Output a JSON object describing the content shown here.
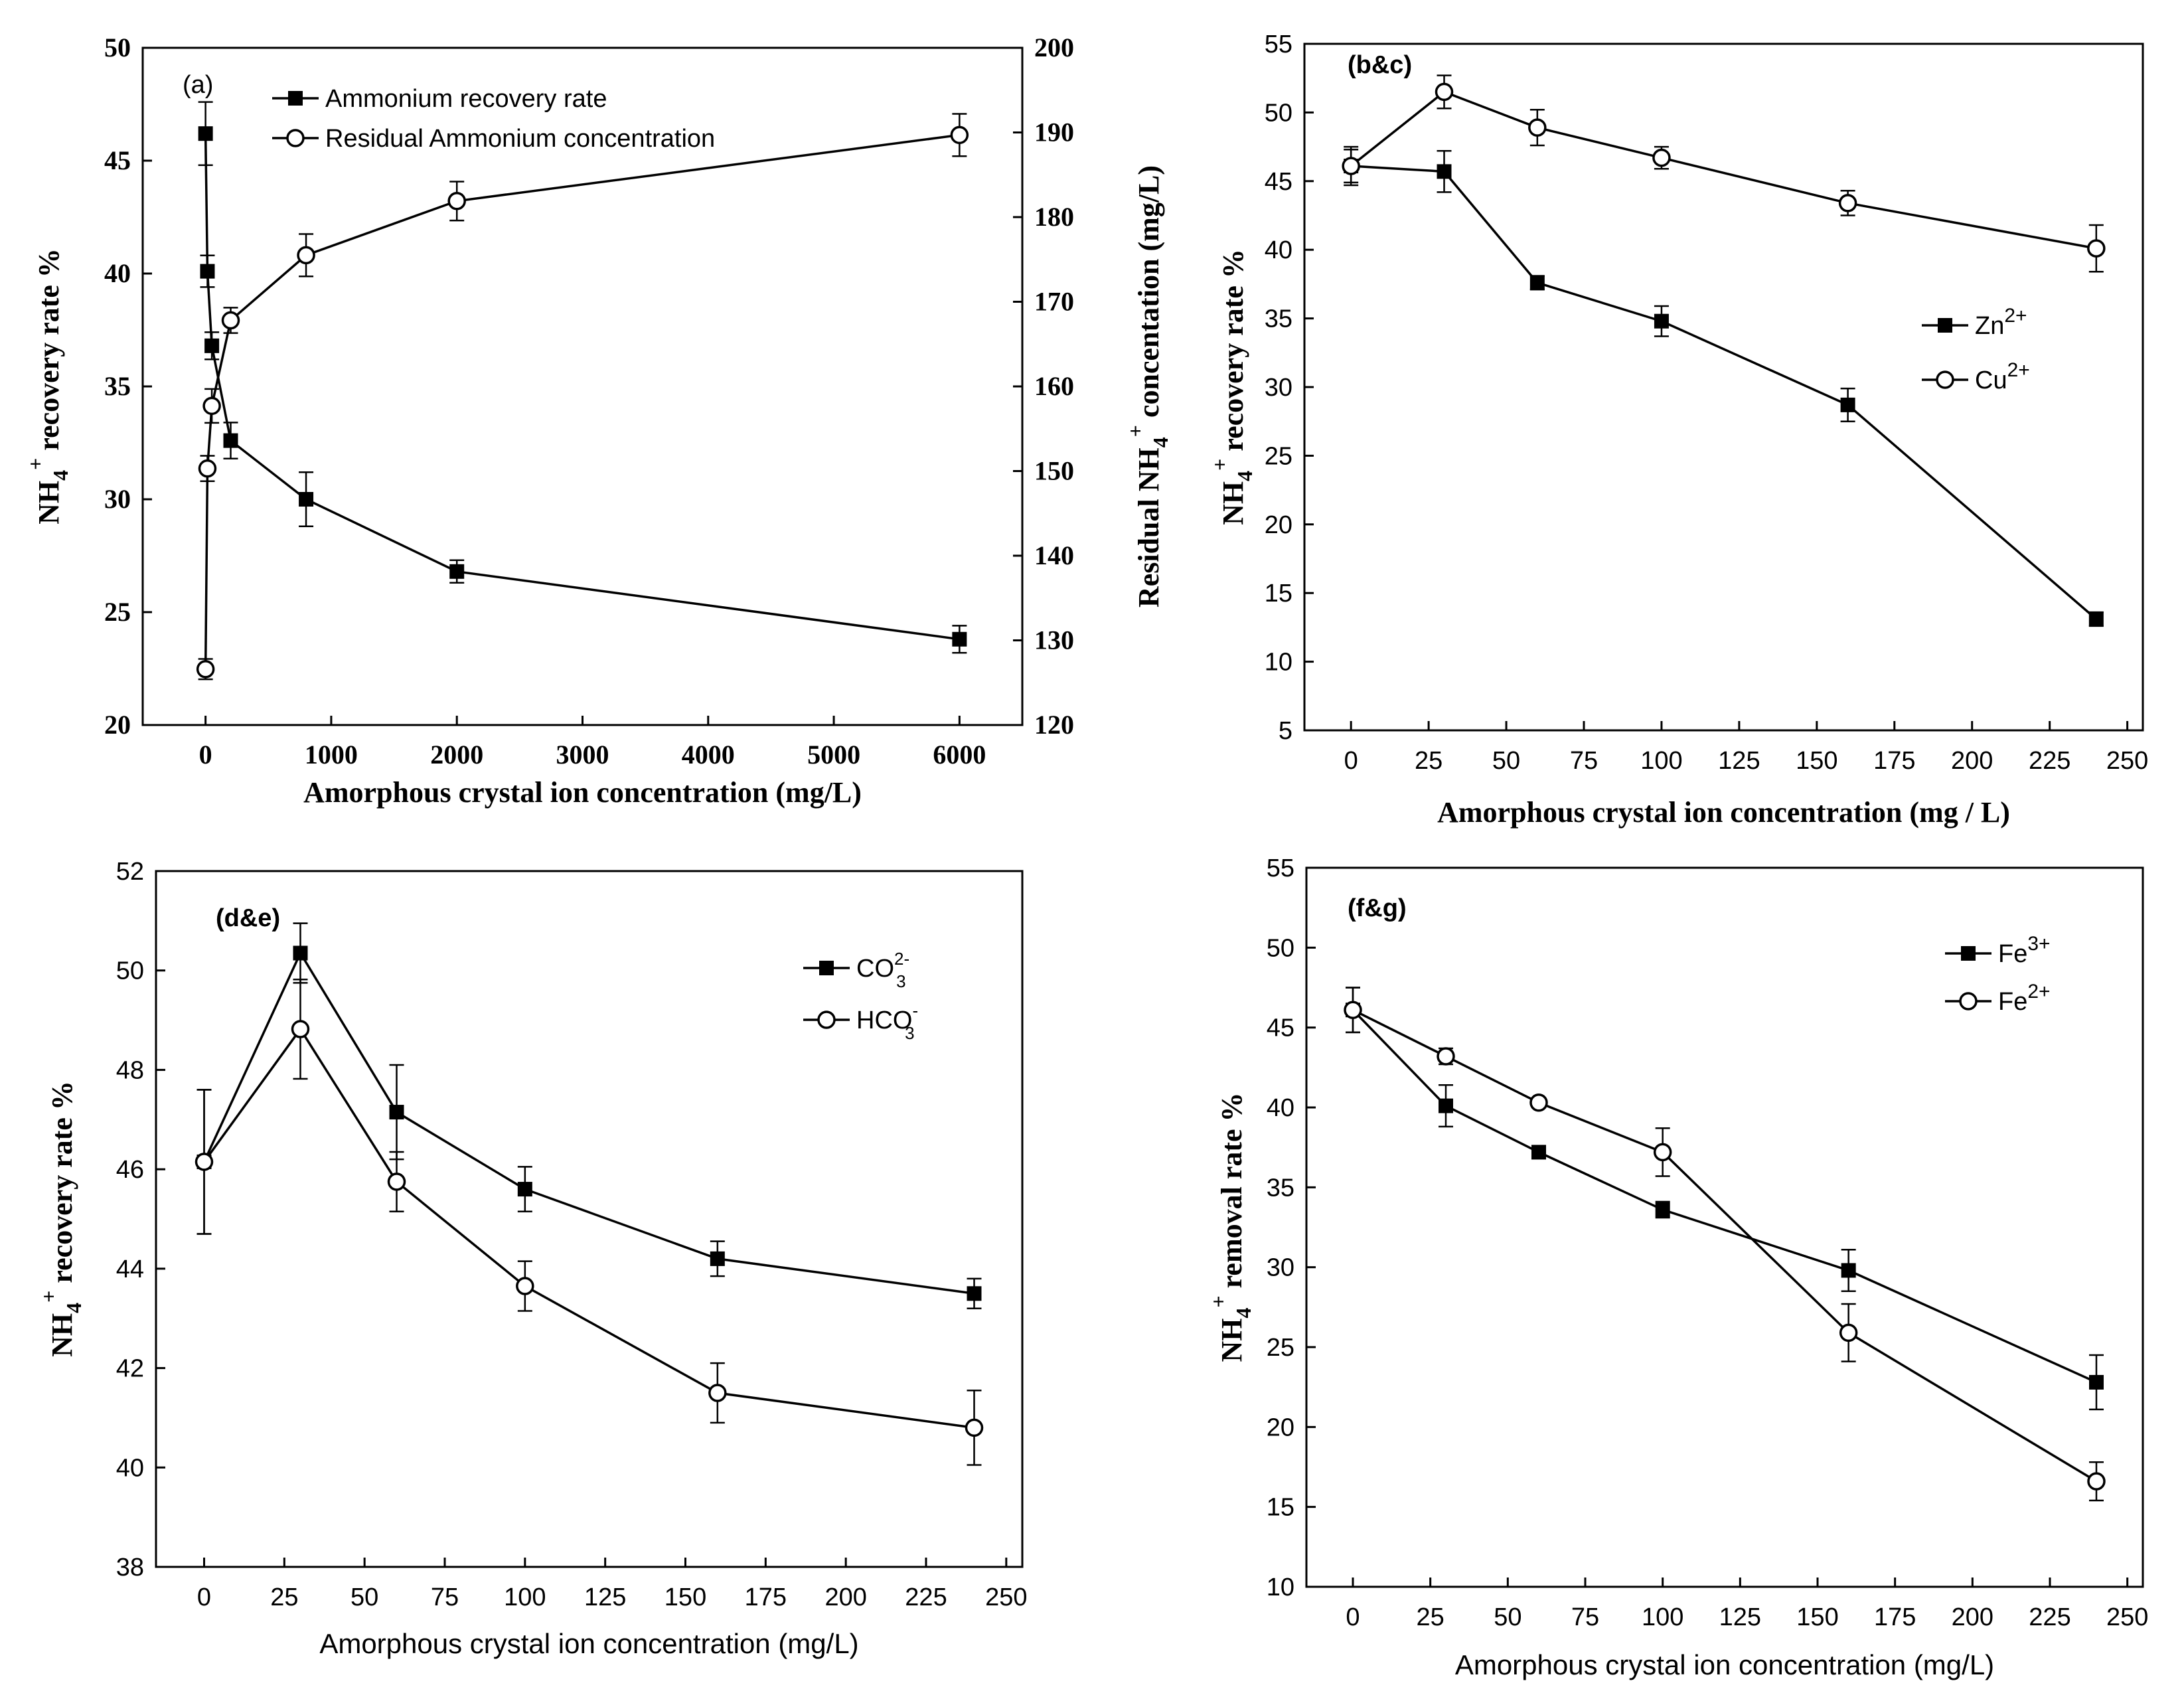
{
  "chart_data": [
    {
      "type": "line",
      "panel_label": "(a)",
      "xlabel": "Amorphous crystal ion concentration (mg/L)",
      "ylabel": "NH4+ recovery rate %",
      "ylabel_parts": {
        "base": "NH",
        "sub": "4",
        "sup": "+",
        "rest": " recovery rate %"
      },
      "y2label": "Residual NH4+ concentation (mg/L)",
      "y2label_parts": {
        "pre": "Residual NH",
        "sub": "4",
        "sup": "+",
        "rest": " concentation (mg/L)"
      },
      "xlim": [
        -500,
        6500
      ],
      "ylim": [
        20,
        50
      ],
      "y2lim": [
        120,
        200
      ],
      "xticks": [
        "0",
        "1000",
        "2000",
        "3000",
        "4000",
        "5000",
        "6000"
      ],
      "xtick_values": [
        0,
        1000,
        2000,
        3000,
        4000,
        5000,
        6000
      ],
      "yticks": [
        "20",
        "25",
        "30",
        "35",
        "40",
        "45",
        "50"
      ],
      "ytick_values": [
        20,
        25,
        30,
        35,
        40,
        45,
        50
      ],
      "y2ticks": [
        "120",
        "130",
        "140",
        "150",
        "160",
        "170",
        "180",
        "190",
        "200"
      ],
      "y2tick_values": [
        120,
        130,
        140,
        150,
        160,
        170,
        180,
        190,
        200
      ],
      "legend": "top-left",
      "series": [
        {
          "name": "Ammonium recovery rate",
          "marker": "square",
          "axis": "left",
          "x": [
            0,
            15,
            50,
            200,
            800,
            2000,
            6000
          ],
          "y": [
            46.2,
            40.1,
            36.8,
            32.6,
            30.0,
            26.8,
            23.8
          ],
          "err": [
            1.4,
            0.7,
            0.6,
            0.8,
            1.2,
            0.5,
            0.6
          ]
        },
        {
          "name": "Residual Ammonium concentration",
          "marker": "circle",
          "axis": "right",
          "x": [
            0,
            15,
            50,
            200,
            800,
            2000,
            6000
          ],
          "y": [
            126.6,
            150.3,
            157.7,
            167.8,
            175.5,
            181.9,
            189.7
          ],
          "err": [
            1.2,
            1.5,
            2.0,
            1.5,
            2.5,
            2.3,
            2.5
          ]
        }
      ]
    },
    {
      "type": "line",
      "panel_label": "(b&c)",
      "xlabel": "Amorphous crystal ion concentration (mg / L)",
      "ylabel": "NH4+ recovery rate %",
      "ylabel_parts": {
        "base": "NH",
        "sub": "4",
        "sup": "+",
        "rest": " recovery rate %"
      },
      "xlim": [
        -15,
        255
      ],
      "ylim": [
        5,
        55
      ],
      "xticks": [
        "0",
        "25",
        "50",
        "75",
        "100",
        "125",
        "150",
        "175",
        "200",
        "225",
        "250"
      ],
      "xtick_values": [
        0,
        25,
        50,
        75,
        100,
        125,
        150,
        175,
        200,
        225,
        250
      ],
      "yticks": [
        "5",
        "10",
        "15",
        "20",
        "25",
        "30",
        "35",
        "40",
        "45",
        "50",
        "55"
      ],
      "ytick_values": [
        5,
        10,
        15,
        20,
        25,
        30,
        35,
        40,
        45,
        50,
        55
      ],
      "legend": "right",
      "series": [
        {
          "name": "Zn2+",
          "name_parts": {
            "base": "Zn",
            "sup": "2+"
          },
          "marker": "square",
          "x": [
            0,
            30,
            60,
            100,
            160,
            240
          ],
          "y": [
            46.1,
            45.7,
            37.6,
            34.8,
            28.7,
            13.1
          ],
          "err": [
            1.2,
            1.5,
            0.5,
            1.1,
            1.2,
            0.5
          ]
        },
        {
          "name": "Cu2+",
          "name_parts": {
            "base": "Cu",
            "sup": "2+"
          },
          "marker": "circle",
          "x": [
            0,
            30,
            60,
            100,
            160,
            240
          ],
          "y": [
            46.1,
            51.5,
            48.9,
            46.7,
            43.4,
            40.1
          ],
          "err": [
            1.4,
            1.2,
            1.3,
            0.8,
            0.9,
            1.7
          ]
        }
      ]
    },
    {
      "type": "line",
      "panel_label": "(d&e)",
      "xlabel": "Amorphous crystal ion concentration (mg/L)",
      "ylabel": "NH4+ recovery rate %",
      "ylabel_parts": {
        "base": "NH",
        "sub": "4",
        "sup": "+",
        "rest": " recovery rate %"
      },
      "xlim": [
        -15,
        255
      ],
      "ylim": [
        38,
        52
      ],
      "xticks": [
        "0",
        "25",
        "50",
        "75",
        "100",
        "125",
        "150",
        "175",
        "200",
        "225",
        "250"
      ],
      "xtick_values": [
        0,
        25,
        50,
        75,
        100,
        125,
        150,
        175,
        200,
        225,
        250
      ],
      "yticks": [
        "38",
        "40",
        "42",
        "44",
        "46",
        "48",
        "50",
        "52"
      ],
      "ytick_values": [
        38,
        40,
        42,
        44,
        46,
        48,
        50,
        52
      ],
      "legend": "top-right",
      "series": [
        {
          "name": "CO32-",
          "name_parts": {
            "base": "CO",
            "sub": "3",
            "sup": "2-"
          },
          "marker": "square",
          "x": [
            0,
            30,
            60,
            100,
            160,
            240
          ],
          "y": [
            46.15,
            50.35,
            47.15,
            45.6,
            44.2,
            43.5
          ],
          "err": [
            1.45,
            0.6,
            0.95,
            0.45,
            0.35,
            0.3
          ]
        },
        {
          "name": "HCO3-",
          "name_parts": {
            "base": "HCO",
            "sub": "3",
            "sup": "-"
          },
          "marker": "circle",
          "x": [
            0,
            30,
            60,
            100,
            160,
            240
          ],
          "y": [
            46.15,
            48.82,
            45.75,
            43.65,
            41.5,
            40.8
          ],
          "err": [
            1.45,
            1.0,
            0.6,
            0.5,
            0.6,
            0.75
          ]
        }
      ]
    },
    {
      "type": "line",
      "panel_label": "(f&g)",
      "xlabel": "Amorphous crystal ion concentration (mg/L)",
      "ylabel": "NH4+ removal rate %",
      "ylabel_parts": {
        "base": "NH",
        "sub": "4",
        "sup": "+",
        "rest": " removal rate %"
      },
      "xlim": [
        -15,
        255
      ],
      "ylim": [
        10,
        55
      ],
      "xticks": [
        "0",
        "25",
        "50",
        "75",
        "100",
        "125",
        "150",
        "175",
        "200",
        "225",
        "250"
      ],
      "xtick_values": [
        0,
        25,
        50,
        75,
        100,
        125,
        150,
        175,
        200,
        225,
        250
      ],
      "yticks": [
        "10",
        "15",
        "20",
        "25",
        "30",
        "35",
        "40",
        "45",
        "50",
        "55"
      ],
      "ytick_values": [
        10,
        15,
        20,
        25,
        30,
        35,
        40,
        45,
        50,
        55
      ],
      "legend": "top-right",
      "series": [
        {
          "name": "Fe3+",
          "name_parts": {
            "base": "Fe",
            "sup": "3+"
          },
          "marker": "square",
          "x": [
            0,
            30,
            60,
            100,
            160,
            240
          ],
          "y": [
            46.1,
            40.1,
            37.2,
            33.6,
            29.8,
            22.8
          ],
          "err": [
            1.4,
            1.3,
            0.4,
            0.5,
            1.3,
            1.7
          ]
        },
        {
          "name": "Fe2+",
          "name_parts": {
            "base": "Fe",
            "sup": "2+"
          },
          "marker": "circle",
          "x": [
            0,
            30,
            60,
            100,
            160,
            240
          ],
          "y": [
            46.1,
            43.2,
            40.3,
            37.2,
            25.9,
            16.6
          ],
          "err": [
            1.4,
            0.5,
            0.3,
            1.5,
            1.8,
            1.2
          ]
        }
      ]
    }
  ]
}
